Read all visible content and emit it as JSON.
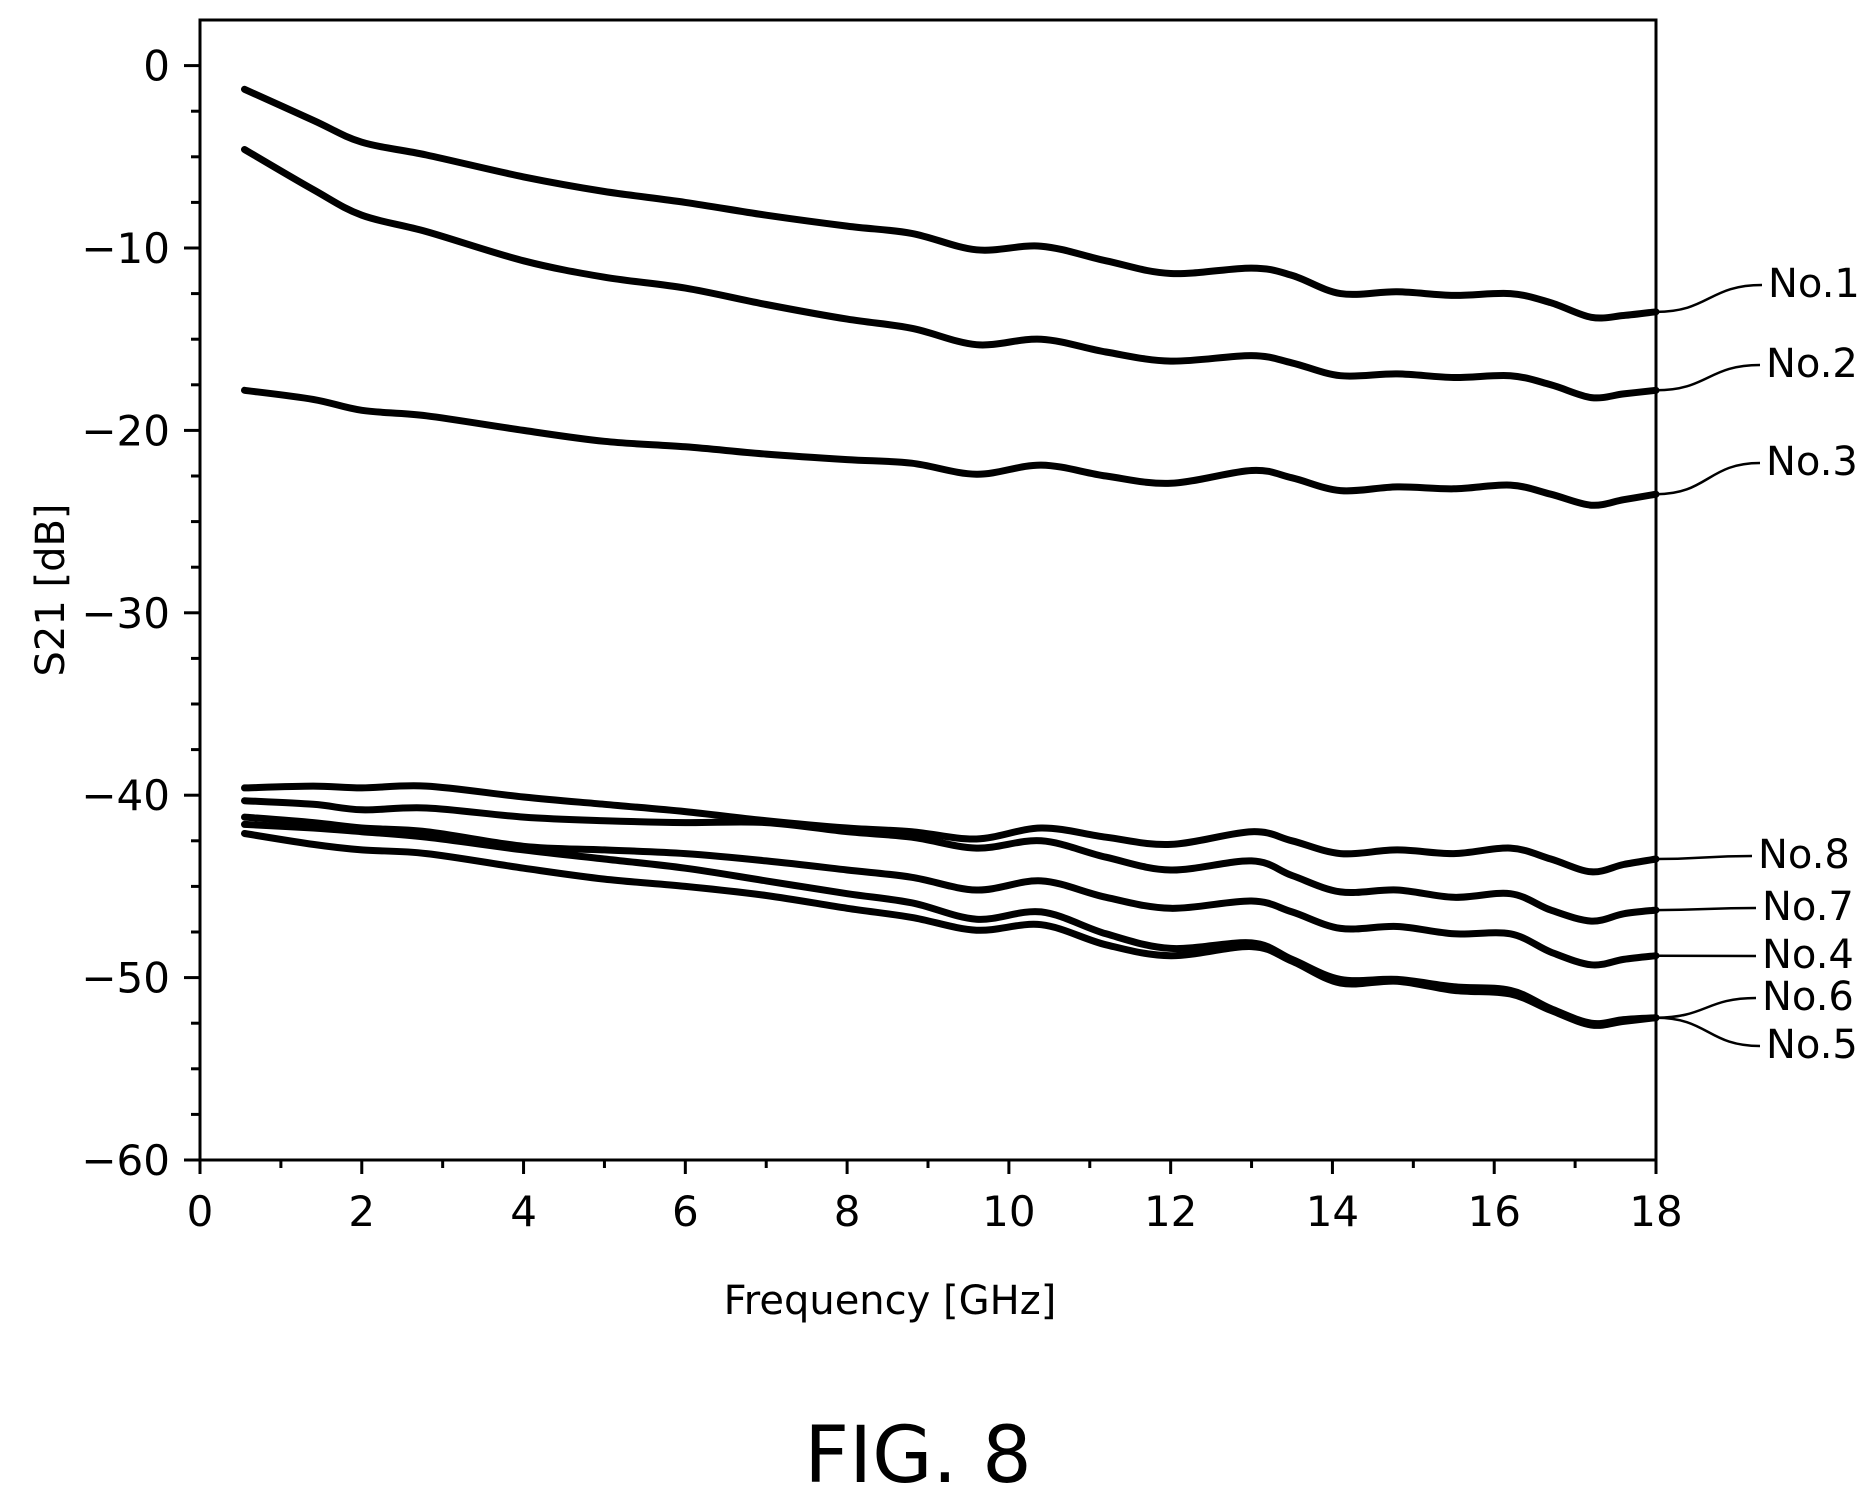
{
  "chart_data": {
    "type": "line",
    "title": "",
    "caption": "FIG. 8",
    "xlabel": "Frequency [GHz]",
    "ylabel": "S21 [dB]",
    "xlim": [
      0,
      18
    ],
    "ylim": [
      -60,
      2.5
    ],
    "xticks": [
      0,
      2,
      4,
      6,
      8,
      10,
      12,
      14,
      16,
      18
    ],
    "yticks": [
      0,
      -10,
      -20,
      -30,
      -40,
      -50,
      -60
    ],
    "xtick_labels": [
      "0",
      "2",
      "4",
      "6",
      "8",
      "10",
      "12",
      "14",
      "16",
      "18"
    ],
    "ytick_labels": [
      "0",
      "−10",
      "−20",
      "−30",
      "−40",
      "−50",
      "−60"
    ],
    "grid": false,
    "series": [
      {
        "name": "No.1",
        "x": [
          0.55,
          1.4,
          2.0,
          2.8,
          4.0,
          5.0,
          6.0,
          7.0,
          8.0,
          8.8,
          9.6,
          10.4,
          11.2,
          12.0,
          13.0,
          13.5,
          14.1,
          14.8,
          15.5,
          16.2,
          16.7,
          17.2,
          17.6,
          18.0
        ],
        "y": [
          -1.3,
          -3.0,
          -4.2,
          -4.9,
          -6.1,
          -6.9,
          -7.5,
          -8.2,
          -8.8,
          -9.2,
          -10.1,
          -9.9,
          -10.7,
          -11.4,
          -11.1,
          -11.5,
          -12.5,
          -12.4,
          -12.6,
          -12.5,
          -13.0,
          -13.8,
          -13.7,
          -13.5
        ]
      },
      {
        "name": "No.2",
        "x": [
          0.55,
          1.4,
          2.0,
          2.8,
          4.0,
          5.0,
          6.0,
          7.0,
          8.0,
          8.8,
          9.6,
          10.4,
          11.2,
          12.0,
          13.0,
          13.5,
          14.1,
          14.8,
          15.5,
          16.2,
          16.7,
          17.2,
          17.6,
          18.0
        ],
        "y": [
          -4.6,
          -6.8,
          -8.2,
          -9.1,
          -10.7,
          -11.6,
          -12.2,
          -13.1,
          -13.9,
          -14.4,
          -15.3,
          -15.0,
          -15.7,
          -16.2,
          -15.9,
          -16.3,
          -17.0,
          -16.9,
          -17.1,
          -17.0,
          -17.5,
          -18.2,
          -18.0,
          -17.8
        ]
      },
      {
        "name": "No.3",
        "x": [
          0.55,
          1.4,
          2.0,
          2.8,
          4.0,
          5.0,
          6.0,
          7.0,
          8.0,
          8.8,
          9.6,
          10.4,
          11.2,
          12.0,
          13.0,
          13.5,
          14.1,
          14.8,
          15.5,
          16.2,
          16.7,
          17.2,
          17.6,
          18.0
        ],
        "y": [
          -17.8,
          -18.3,
          -18.9,
          -19.2,
          -20.0,
          -20.6,
          -20.9,
          -21.3,
          -21.6,
          -21.8,
          -22.4,
          -21.9,
          -22.5,
          -22.9,
          -22.2,
          -22.6,
          -23.3,
          -23.1,
          -23.2,
          -23.0,
          -23.5,
          -24.1,
          -23.8,
          -23.5
        ]
      },
      {
        "name": "No.8",
        "x": [
          0.55,
          1.4,
          2.0,
          2.8,
          4.0,
          5.0,
          6.0,
          7.0,
          8.0,
          8.8,
          9.6,
          10.4,
          11.2,
          12.0,
          13.0,
          13.5,
          14.1,
          14.8,
          15.5,
          16.2,
          16.7,
          17.2,
          17.6,
          18.0
        ],
        "y": [
          -39.6,
          -39.5,
          -39.6,
          -39.5,
          -40.1,
          -40.5,
          -40.9,
          -41.4,
          -41.8,
          -42.0,
          -42.4,
          -41.8,
          -42.3,
          -42.7,
          -42.0,
          -42.5,
          -43.2,
          -43.0,
          -43.2,
          -42.9,
          -43.5,
          -44.2,
          -43.8,
          -43.5
        ]
      },
      {
        "name": "No.7",
        "x": [
          0.55,
          1.4,
          2.0,
          2.8,
          4.0,
          5.0,
          6.0,
          7.0,
          8.0,
          8.8,
          9.6,
          10.4,
          11.2,
          12.0,
          13.0,
          13.5,
          14.1,
          14.8,
          15.5,
          16.2,
          16.7,
          17.2,
          17.6,
          18.0
        ],
        "y": [
          -40.3,
          -40.5,
          -40.8,
          -40.7,
          -41.2,
          -41.4,
          -41.5,
          -41.5,
          -42.0,
          -42.3,
          -42.9,
          -42.5,
          -43.4,
          -44.1,
          -43.6,
          -44.4,
          -45.3,
          -45.2,
          -45.6,
          -45.4,
          -46.3,
          -46.9,
          -46.5,
          -46.3
        ]
      },
      {
        "name": "No.4",
        "x": [
          0.55,
          1.4,
          2.0,
          2.8,
          4.0,
          5.0,
          6.0,
          7.0,
          8.0,
          8.8,
          9.6,
          10.4,
          11.2,
          12.0,
          13.0,
          13.5,
          14.1,
          14.8,
          15.5,
          16.2,
          16.7,
          17.2,
          17.6,
          18.0
        ],
        "y": [
          -41.2,
          -41.5,
          -41.8,
          -42.0,
          -42.8,
          -43.0,
          -43.2,
          -43.6,
          -44.1,
          -44.5,
          -45.2,
          -44.7,
          -45.6,
          -46.2,
          -45.8,
          -46.4,
          -47.3,
          -47.2,
          -47.6,
          -47.6,
          -48.6,
          -49.3,
          -49.0,
          -48.8
        ]
      },
      {
        "name": "No.6",
        "x": [
          0.55,
          1.4,
          2.0,
          2.8,
          4.0,
          5.0,
          6.0,
          7.0,
          8.0,
          8.8,
          9.6,
          10.4,
          11.2,
          12.0,
          13.0,
          13.5,
          14.1,
          14.8,
          15.5,
          16.2,
          16.7,
          17.2,
          17.6,
          18.0
        ],
        "y": [
          -41.6,
          -41.8,
          -42.0,
          -42.3,
          -43.0,
          -43.5,
          -44.0,
          -44.7,
          -45.4,
          -45.9,
          -46.8,
          -46.4,
          -47.6,
          -48.4,
          -48.1,
          -49.0,
          -50.1,
          -50.1,
          -50.5,
          -50.7,
          -51.7,
          -52.5,
          -52.3,
          -52.2
        ]
      },
      {
        "name": "No.5",
        "x": [
          0.55,
          1.4,
          2.0,
          2.8,
          4.0,
          5.0,
          6.0,
          7.0,
          8.0,
          8.8,
          9.6,
          10.4,
          11.2,
          12.0,
          13.0,
          13.5,
          14.1,
          14.8,
          15.5,
          16.2,
          16.7,
          17.2,
          17.6,
          18.0
        ],
        "y": [
          -42.1,
          -42.7,
          -43.0,
          -43.2,
          -44.0,
          -44.6,
          -45.0,
          -45.5,
          -46.2,
          -46.7,
          -47.4,
          -47.1,
          -48.2,
          -48.8,
          -48.3,
          -49.1,
          -50.3,
          -50.2,
          -50.7,
          -50.9,
          -51.8,
          -52.6,
          -52.4,
          -52.2
        ]
      }
    ]
  }
}
